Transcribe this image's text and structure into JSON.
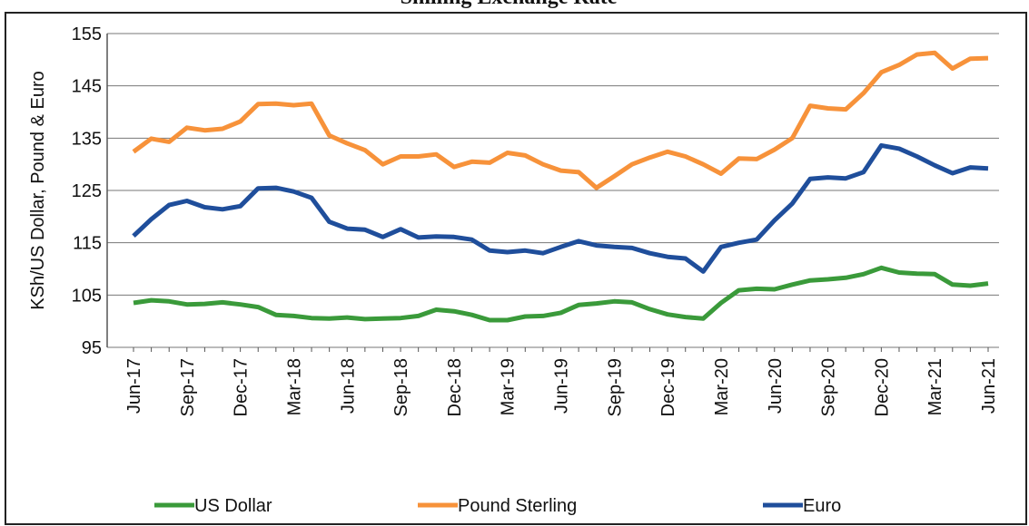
{
  "chart_data": {
    "type": "line",
    "title": "Shilling Exchange Rate",
    "y_label": "KSh/US Dollar, Pound & Euro",
    "categories": [
      "Jun-17",
      null,
      null,
      "Sep-17",
      null,
      null,
      "Dec-17",
      null,
      null,
      "Mar-18",
      null,
      null,
      "Jun-18",
      null,
      null,
      "Sep-18",
      null,
      null,
      "Dec-18",
      null,
      null,
      "Mar-19",
      null,
      null,
      "Jun-19",
      null,
      null,
      "Sep-19",
      null,
      null,
      "Dec-19",
      null,
      null,
      "Mar-20",
      null,
      null,
      "Jun-20",
      null,
      null,
      "Sep-20",
      null,
      null,
      "Dec-20",
      null,
      null,
      "Mar-21",
      null,
      null,
      "Jun-21"
    ],
    "series": [
      {
        "name": "US Dollar",
        "color": "#3a9a3a",
        "values": [
          103.5,
          104,
          103.8,
          103.2,
          103.3,
          103.6,
          103.2,
          102.7,
          101.2,
          101,
          100.6,
          100.5,
          100.7,
          100.4,
          100.5,
          100.6,
          101,
          102.2,
          101.9,
          101.2,
          100.2,
          100.2,
          100.9,
          101,
          101.6,
          103.1,
          103.4,
          103.8,
          103.6,
          102.3,
          101.3,
          100.8,
          100.5,
          103.5,
          105.9,
          106.2,
          106.1,
          107,
          107.8,
          108,
          108.3,
          109,
          110.2,
          109.3,
          109.1,
          109,
          107,
          106.8,
          107.2
        ]
      },
      {
        "name": "Pound Sterling",
        "color": "#f7923a",
        "values": [
          132.4,
          134.9,
          134.3,
          137,
          136.5,
          136.8,
          138.2,
          141.5,
          141.6,
          141.3,
          141.6,
          135.5,
          134,
          132.7,
          130,
          131.5,
          131.5,
          131.9,
          129.5,
          130.5,
          130.3,
          132.2,
          131.7,
          130,
          128.8,
          128.5,
          125.5,
          127.7,
          130,
          131.3,
          132.4,
          131.5,
          130,
          128.2,
          131.1,
          131,
          132.8,
          135,
          141.2,
          140.7,
          140.5,
          143.6,
          147.6,
          149,
          151,
          151.3,
          148.3,
          150.2,
          150.3
        ]
      },
      {
        "name": "Euro",
        "color": "#1f4e9b",
        "values": [
          116.3,
          119.5,
          122.2,
          123,
          121.8,
          121.4,
          122,
          125.4,
          125.5,
          124.8,
          123.6,
          119,
          117.7,
          117.5,
          116.1,
          117.6,
          116,
          116.2,
          116.1,
          115.6,
          113.5,
          113.2,
          113.5,
          113,
          114.2,
          115.3,
          114.5,
          114.2,
          114,
          113,
          112.3,
          112,
          109.5,
          114.2,
          115,
          115.6,
          119.3,
          122.5,
          127.2,
          127.5,
          127.3,
          128.5,
          133.6,
          133,
          131.5,
          129.8,
          128.3,
          129.4,
          129.2
        ]
      }
    ],
    "ylim": [
      95,
      155
    ],
    "yticks": [
      95,
      105,
      115,
      125,
      135,
      145,
      155
    ],
    "grid": true
  }
}
